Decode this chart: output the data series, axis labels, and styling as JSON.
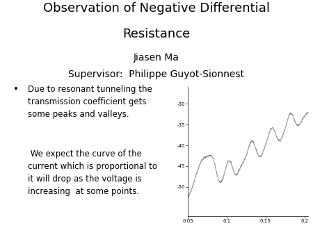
{
  "title_line1": "Observation of Negative Differential",
  "title_line2": "Resistance",
  "author": "Jiasen Ma",
  "supervisor": "Supervisor:  Philippe Guyot-Sionnest",
  "bullet_text1": "Due to resonant tunneling the\ntransmission coefficient gets\nsome peaks and valleys.",
  "bullet_text2": " We expect the curve of the\ncurrent which is proportional to\nit will drop as the voltage is\nincreasing  at some points.",
  "bg_color": "#ffffff",
  "text_color": "#000000",
  "plot_xlim": [
    0.05,
    0.205
  ],
  "plot_ylim": [
    -57,
    -26
  ],
  "plot_xticks": [
    0.05,
    0.1,
    0.15,
    0.2
  ],
  "plot_xtick_labels": [
    "0.05",
    "0.1",
    "0.15",
    "0.2"
  ],
  "plot_yticks": [
    -30,
    -35,
    -40,
    -45,
    -50
  ],
  "plot_ytick_labels": [
    "-30",
    "-35",
    "-40",
    "-45",
    "-50"
  ],
  "title_fontsize": 13,
  "author_fontsize": 10,
  "bullet_fontsize": 8.5
}
